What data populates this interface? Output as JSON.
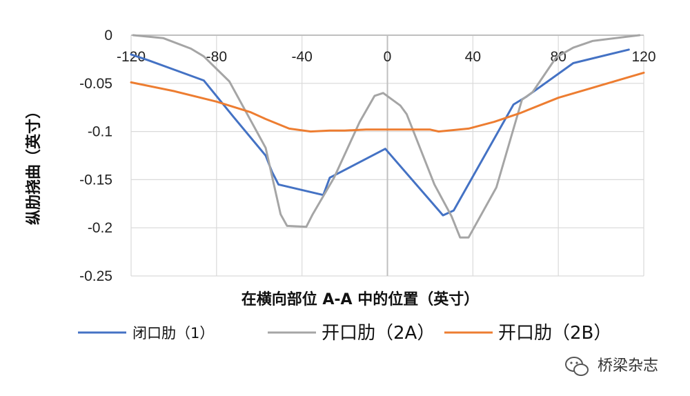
{
  "chart_data": {
    "type": "line",
    "xlabel": "在横向部位 A-A 中的位置（英寸）",
    "ylabel": "纵肋挠曲（英寸）",
    "xlim": [
      -120,
      120
    ],
    "ylim": [
      -0.25,
      0
    ],
    "x_ticks": [
      "-120",
      "-80",
      "-40",
      "0",
      "40",
      "80",
      "120"
    ],
    "y_ticks": [
      "0",
      "-0.05",
      "-0.1",
      "-0.15",
      "-0.2",
      "-0.25"
    ],
    "grid": true,
    "legend_position": "bottom",
    "series": [
      {
        "name": "闭口肋（1）",
        "color": "#4472C4",
        "x": [
          -120,
          -112,
          -86,
          -72,
          -57,
          -54,
          -51,
          -30,
          -27,
          -1,
          26,
          31,
          59,
          65,
          87,
          113
        ],
        "y": [
          -0.02,
          -0.026,
          -0.047,
          -0.085,
          -0.125,
          -0.142,
          -0.155,
          -0.166,
          -0.148,
          -0.118,
          -0.187,
          -0.182,
          -0.072,
          -0.064,
          -0.029,
          -0.015
        ]
      },
      {
        "name": "开口肋（2A）",
        "color": "#A5A5A5",
        "x": [
          -119,
          -105,
          -92,
          -86,
          -74,
          -57,
          -50,
          -47,
          -38,
          -35,
          -25,
          -13,
          -6,
          -2,
          6,
          9,
          22,
          30,
          34,
          38,
          51,
          63,
          68,
          79,
          87,
          96,
          118
        ],
        "y": [
          0,
          -0.003,
          -0.014,
          -0.022,
          -0.048,
          -0.117,
          -0.186,
          -0.198,
          -0.199,
          -0.186,
          -0.148,
          -0.09,
          -0.063,
          -0.06,
          -0.073,
          -0.082,
          -0.155,
          -0.188,
          -0.21,
          -0.21,
          -0.158,
          -0.067,
          -0.059,
          -0.023,
          -0.013,
          -0.006,
          0
        ]
      },
      {
        "name": "开口肋（2B）",
        "color": "#ED7D31",
        "x": [
          -120,
          -100,
          -80,
          -64,
          -57,
          -46,
          -36,
          -27,
          -20,
          -10,
          0,
          20,
          24,
          38,
          50,
          62,
          80,
          100,
          120
        ],
        "y": [
          -0.049,
          -0.058,
          -0.069,
          -0.08,
          -0.087,
          -0.097,
          -0.1,
          -0.099,
          -0.099,
          -0.098,
          -0.098,
          -0.098,
          -0.1,
          -0.097,
          -0.09,
          -0.081,
          -0.065,
          -0.052,
          -0.039
        ]
      }
    ]
  },
  "watermark": {
    "text": "桥梁杂志",
    "icon": "wechat-icon"
  }
}
